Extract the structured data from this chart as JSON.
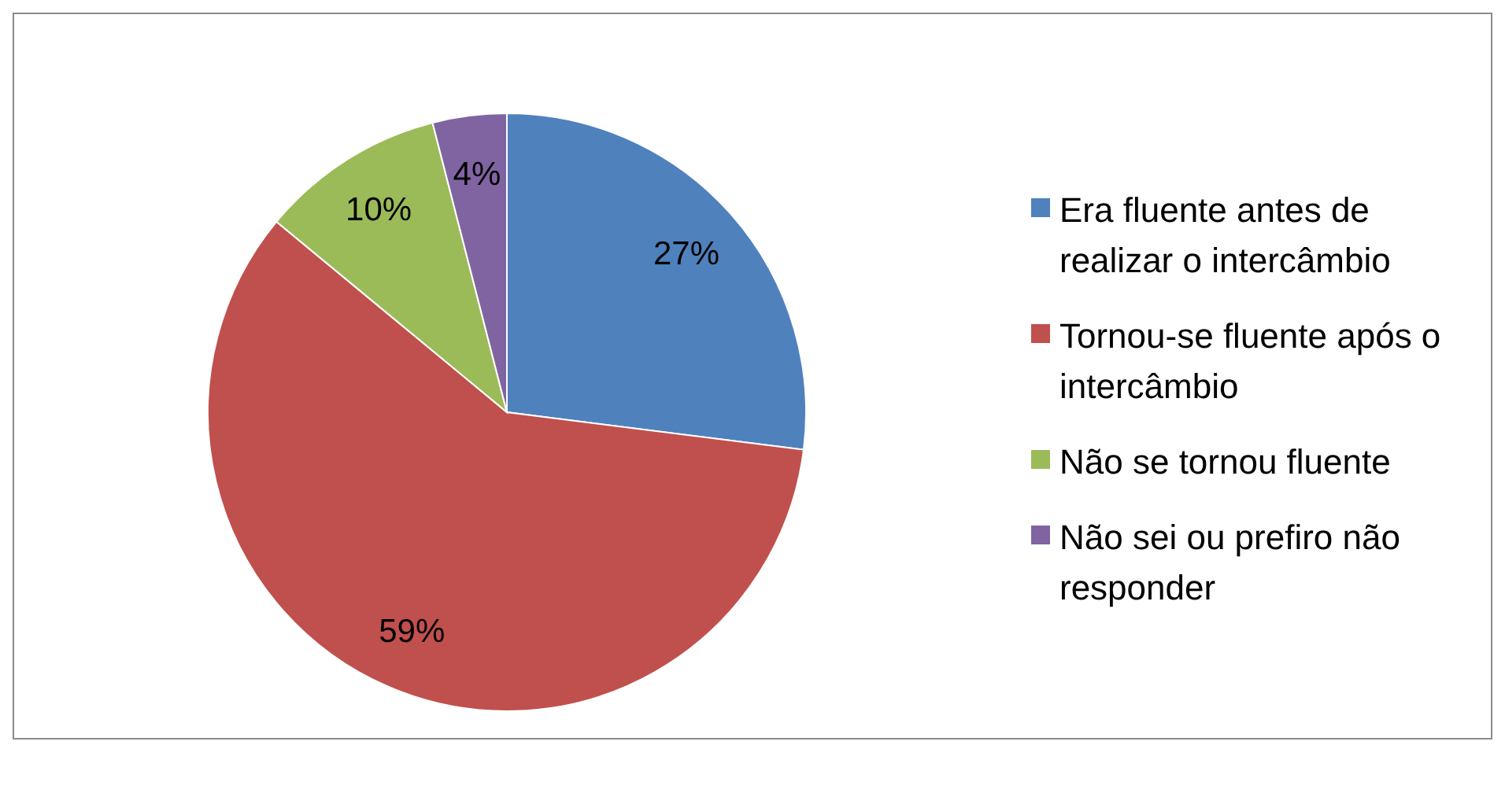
{
  "chart_data": {
    "type": "pie",
    "categories": [
      "Era fluente antes de realizar o intercâmbio",
      "Tornou-se fluente após o intercâmbio",
      "Não se tornou fluente",
      "Não sei ou prefiro não responder"
    ],
    "values": [
      27,
      59,
      10,
      4
    ],
    "colors": [
      "#4f81bd",
      "#c0504d",
      "#9bbb59",
      "#8064a2"
    ],
    "value_labels": [
      "27%",
      "59%",
      "10%",
      "4%"
    ],
    "legend": "right"
  }
}
